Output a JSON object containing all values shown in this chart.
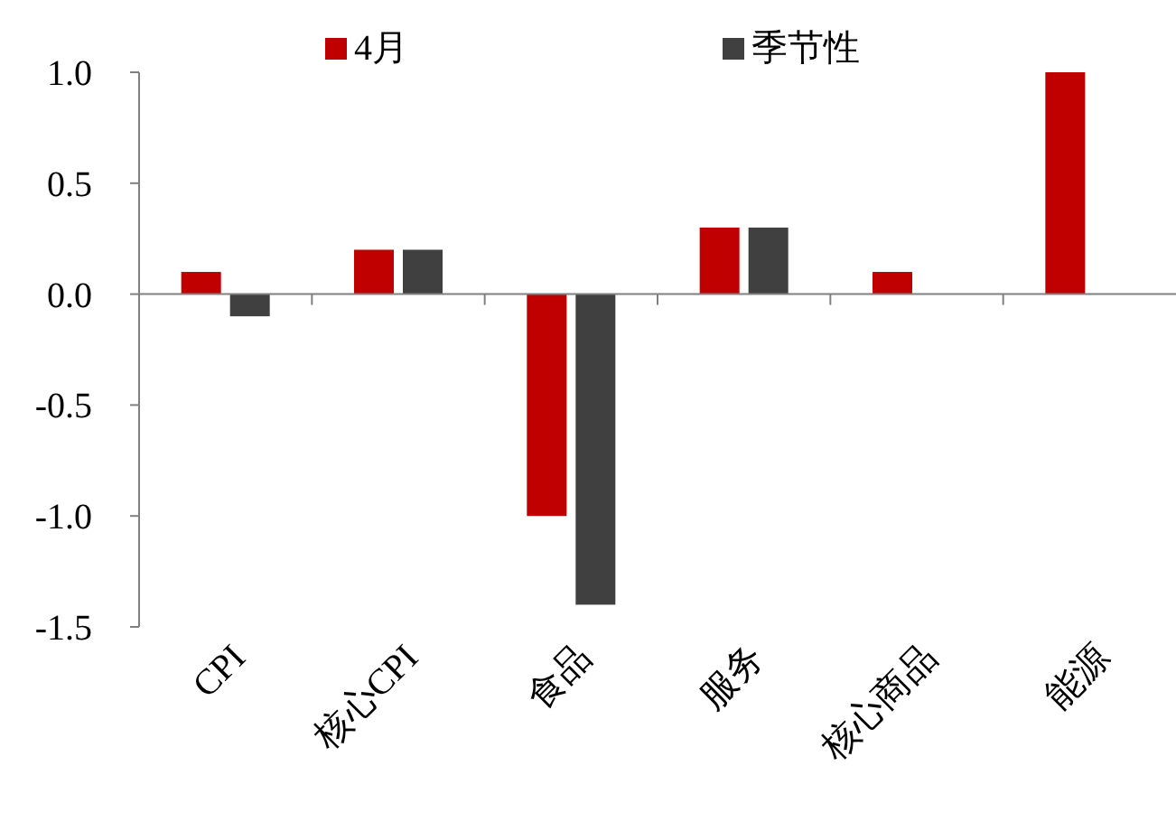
{
  "chart_data": {
    "type": "bar",
    "categories": [
      "CPI",
      "核心CPI",
      "食品",
      "服务",
      "核心商品",
      "能源"
    ],
    "series": [
      {
        "name": "4月",
        "color": "#c00000",
        "values": [
          0.1,
          0.2,
          -1.0,
          0.3,
          0.1,
          1.0
        ]
      },
      {
        "name": "季节性",
        "color": "#404040",
        "values": [
          -0.1,
          0.2,
          -1.4,
          0.3,
          0.0,
          0.0
        ]
      }
    ],
    "ylim": [
      -1.5,
      1.0
    ],
    "yticks": [
      {
        "value": -1.5,
        "label": "-1.5"
      },
      {
        "value": -1.0,
        "label": "-1.0"
      },
      {
        "value": -0.5,
        "label": "-0.5"
      },
      {
        "value": 0,
        "label": "0.0"
      },
      {
        "value": 0.5,
        "label": "0.5"
      },
      {
        "value": 1.0,
        "label": "1.0"
      }
    ],
    "legend": "top"
  }
}
